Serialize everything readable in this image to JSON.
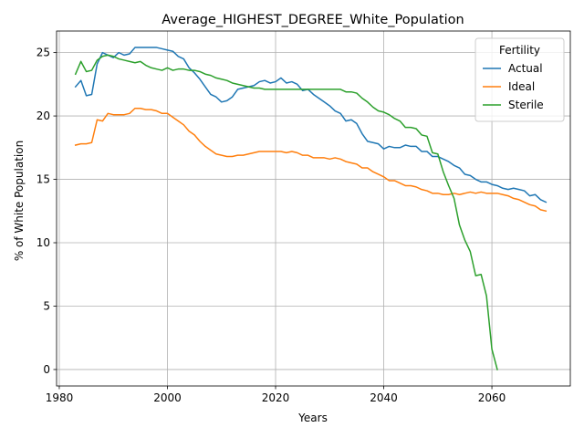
{
  "chart_data": {
    "type": "line",
    "title": "Average_HIGHEST_DEGREE_White_Population",
    "xlabel": "Years",
    "ylabel": "% of White Population",
    "xlim": [
      1979.5,
      2074.5
    ],
    "ylim": [
      -1.3,
      26.7
    ],
    "xticks": [
      1980,
      2000,
      2020,
      2040,
      2060
    ],
    "yticks": [
      0,
      5,
      10,
      15,
      20,
      25
    ],
    "grid": true,
    "legend": {
      "title": "Fertility",
      "position": "top-right"
    },
    "series": [
      {
        "name": "Actual",
        "color": "#1f77b4",
        "points": [
          [
            1983,
            22.3
          ],
          [
            1984,
            22.8
          ],
          [
            1985,
            21.6
          ],
          [
            1986,
            21.7
          ],
          [
            1987,
            24.1
          ],
          [
            1988,
            25.0
          ],
          [
            1989,
            24.8
          ],
          [
            1990,
            24.6
          ],
          [
            1991,
            25.0
          ],
          [
            1992,
            24.8
          ],
          [
            1993,
            24.9
          ],
          [
            1994,
            25.4
          ],
          [
            1995,
            25.4
          ],
          [
            1996,
            25.4
          ],
          [
            1997,
            25.4
          ],
          [
            1998,
            25.4
          ],
          [
            1999,
            25.3
          ],
          [
            2000,
            25.2
          ],
          [
            2001,
            25.1
          ],
          [
            2002,
            24.7
          ],
          [
            2003,
            24.5
          ],
          [
            2004,
            23.8
          ],
          [
            2005,
            23.4
          ],
          [
            2006,
            22.9
          ],
          [
            2007,
            22.3
          ],
          [
            2008,
            21.7
          ],
          [
            2009,
            21.5
          ],
          [
            2010,
            21.1
          ],
          [
            2011,
            21.2
          ],
          [
            2012,
            21.5
          ],
          [
            2013,
            22.1
          ],
          [
            2014,
            22.2
          ],
          [
            2015,
            22.3
          ],
          [
            2016,
            22.4
          ],
          [
            2017,
            22.7
          ],
          [
            2018,
            22.8
          ],
          [
            2019,
            22.6
          ],
          [
            2020,
            22.7
          ],
          [
            2021,
            23.0
          ],
          [
            2022,
            22.6
          ],
          [
            2023,
            22.7
          ],
          [
            2024,
            22.5
          ],
          [
            2025,
            22.0
          ],
          [
            2026,
            22.1
          ],
          [
            2027,
            21.7
          ],
          [
            2028,
            21.4
          ],
          [
            2029,
            21.1
          ],
          [
            2030,
            20.8
          ],
          [
            2031,
            20.4
          ],
          [
            2032,
            20.2
          ],
          [
            2033,
            19.6
          ],
          [
            2034,
            19.7
          ],
          [
            2035,
            19.4
          ],
          [
            2036,
            18.6
          ],
          [
            2037,
            18.0
          ],
          [
            2038,
            17.9
          ],
          [
            2039,
            17.8
          ],
          [
            2040,
            17.4
          ],
          [
            2041,
            17.6
          ],
          [
            2042,
            17.5
          ],
          [
            2043,
            17.5
          ],
          [
            2044,
            17.7
          ],
          [
            2045,
            17.6
          ],
          [
            2046,
            17.6
          ],
          [
            2047,
            17.2
          ],
          [
            2048,
            17.2
          ],
          [
            2049,
            16.8
          ],
          [
            2050,
            16.8
          ],
          [
            2051,
            16.6
          ],
          [
            2052,
            16.4
          ],
          [
            2053,
            16.1
          ],
          [
            2054,
            15.9
          ],
          [
            2055,
            15.4
          ],
          [
            2056,
            15.3
          ],
          [
            2057,
            15.0
          ],
          [
            2058,
            14.8
          ],
          [
            2059,
            14.8
          ],
          [
            2060,
            14.6
          ],
          [
            2061,
            14.5
          ],
          [
            2062,
            14.3
          ],
          [
            2063,
            14.2
          ],
          [
            2064,
            14.3
          ],
          [
            2065,
            14.2
          ],
          [
            2066,
            14.1
          ],
          [
            2067,
            13.7
          ],
          [
            2068,
            13.8
          ],
          [
            2069,
            13.4
          ],
          [
            2070,
            13.2
          ]
        ]
      },
      {
        "name": "Ideal",
        "color": "#ff7f0e",
        "points": [
          [
            1983,
            17.7
          ],
          [
            1984,
            17.8
          ],
          [
            1985,
            17.8
          ],
          [
            1986,
            17.9
          ],
          [
            1987,
            19.7
          ],
          [
            1988,
            19.6
          ],
          [
            1989,
            20.2
          ],
          [
            1990,
            20.1
          ],
          [
            1991,
            20.1
          ],
          [
            1992,
            20.1
          ],
          [
            1993,
            20.2
          ],
          [
            1994,
            20.6
          ],
          [
            1995,
            20.6
          ],
          [
            1996,
            20.5
          ],
          [
            1997,
            20.5
          ],
          [
            1998,
            20.4
          ],
          [
            1999,
            20.2
          ],
          [
            2000,
            20.2
          ],
          [
            2001,
            19.9
          ],
          [
            2002,
            19.6
          ],
          [
            2003,
            19.3
          ],
          [
            2004,
            18.8
          ],
          [
            2005,
            18.5
          ],
          [
            2006,
            18.0
          ],
          [
            2007,
            17.6
          ],
          [
            2008,
            17.3
          ],
          [
            2009,
            17.0
          ],
          [
            2010,
            16.9
          ],
          [
            2011,
            16.8
          ],
          [
            2012,
            16.8
          ],
          [
            2013,
            16.9
          ],
          [
            2014,
            16.9
          ],
          [
            2015,
            17.0
          ],
          [
            2016,
            17.1
          ],
          [
            2017,
            17.2
          ],
          [
            2018,
            17.2
          ],
          [
            2019,
            17.2
          ],
          [
            2020,
            17.2
          ],
          [
            2021,
            17.2
          ],
          [
            2022,
            17.1
          ],
          [
            2023,
            17.2
          ],
          [
            2024,
            17.1
          ],
          [
            2025,
            16.9
          ],
          [
            2026,
            16.9
          ],
          [
            2027,
            16.7
          ],
          [
            2028,
            16.7
          ],
          [
            2029,
            16.7
          ],
          [
            2030,
            16.6
          ],
          [
            2031,
            16.7
          ],
          [
            2032,
            16.6
          ],
          [
            2033,
            16.4
          ],
          [
            2034,
            16.3
          ],
          [
            2035,
            16.2
          ],
          [
            2036,
            15.9
          ],
          [
            2037,
            15.9
          ],
          [
            2038,
            15.6
          ],
          [
            2039,
            15.4
          ],
          [
            2040,
            15.2
          ],
          [
            2041,
            14.9
          ],
          [
            2042,
            14.9
          ],
          [
            2043,
            14.7
          ],
          [
            2044,
            14.5
          ],
          [
            2045,
            14.5
          ],
          [
            2046,
            14.4
          ],
          [
            2047,
            14.2
          ],
          [
            2048,
            14.1
          ],
          [
            2049,
            13.9
          ],
          [
            2050,
            13.9
          ],
          [
            2051,
            13.8
          ],
          [
            2052,
            13.8
          ],
          [
            2053,
            13.9
          ],
          [
            2054,
            13.8
          ],
          [
            2055,
            13.9
          ],
          [
            2056,
            14.0
          ],
          [
            2057,
            13.9
          ],
          [
            2058,
            14.0
          ],
          [
            2059,
            13.9
          ],
          [
            2060,
            13.9
          ],
          [
            2061,
            13.9
          ],
          [
            2062,
            13.8
          ],
          [
            2063,
            13.7
          ],
          [
            2064,
            13.5
          ],
          [
            2065,
            13.4
          ],
          [
            2066,
            13.2
          ],
          [
            2067,
            13.0
          ],
          [
            2068,
            12.9
          ],
          [
            2069,
            12.6
          ],
          [
            2070,
            12.5
          ]
        ]
      },
      {
        "name": "Sterile",
        "color": "#2ca02c",
        "points": [
          [
            1983,
            23.3
          ],
          [
            1984,
            24.3
          ],
          [
            1985,
            23.5
          ],
          [
            1986,
            23.6
          ],
          [
            1987,
            24.4
          ],
          [
            1988,
            24.7
          ],
          [
            1989,
            24.8
          ],
          [
            1990,
            24.7
          ],
          [
            1991,
            24.5
          ],
          [
            1992,
            24.4
          ],
          [
            1993,
            24.3
          ],
          [
            1994,
            24.2
          ],
          [
            1995,
            24.3
          ],
          [
            1996,
            24.0
          ],
          [
            1997,
            23.8
          ],
          [
            1998,
            23.7
          ],
          [
            1999,
            23.6
          ],
          [
            2000,
            23.8
          ],
          [
            2001,
            23.6
          ],
          [
            2002,
            23.7
          ],
          [
            2003,
            23.7
          ],
          [
            2004,
            23.6
          ],
          [
            2005,
            23.6
          ],
          [
            2006,
            23.5
          ],
          [
            2007,
            23.3
          ],
          [
            2008,
            23.2
          ],
          [
            2009,
            23.0
          ],
          [
            2010,
            22.9
          ],
          [
            2011,
            22.8
          ],
          [
            2012,
            22.6
          ],
          [
            2013,
            22.5
          ],
          [
            2014,
            22.4
          ],
          [
            2015,
            22.3
          ],
          [
            2016,
            22.2
          ],
          [
            2017,
            22.2
          ],
          [
            2018,
            22.1
          ],
          [
            2019,
            22.1
          ],
          [
            2020,
            22.1
          ],
          [
            2021,
            22.1
          ],
          [
            2022,
            22.1
          ],
          [
            2023,
            22.1
          ],
          [
            2024,
            22.1
          ],
          [
            2025,
            22.1
          ],
          [
            2026,
            22.1
          ],
          [
            2027,
            22.1
          ],
          [
            2028,
            22.1
          ],
          [
            2029,
            22.1
          ],
          [
            2030,
            22.1
          ],
          [
            2031,
            22.1
          ],
          [
            2032,
            22.1
          ],
          [
            2033,
            21.9
          ],
          [
            2034,
            21.9
          ],
          [
            2035,
            21.8
          ],
          [
            2036,
            21.4
          ],
          [
            2037,
            21.1
          ],
          [
            2038,
            20.7
          ],
          [
            2039,
            20.4
          ],
          [
            2040,
            20.3
          ],
          [
            2041,
            20.1
          ],
          [
            2042,
            19.8
          ],
          [
            2043,
            19.6
          ],
          [
            2044,
            19.1
          ],
          [
            2045,
            19.1
          ],
          [
            2046,
            19.0
          ],
          [
            2047,
            18.5
          ],
          [
            2048,
            18.4
          ],
          [
            2049,
            17.1
          ],
          [
            2050,
            17.0
          ],
          [
            2051,
            15.6
          ],
          [
            2052,
            14.5
          ],
          [
            2053,
            13.5
          ],
          [
            2054,
            11.4
          ],
          [
            2055,
            10.2
          ],
          [
            2056,
            9.3
          ],
          [
            2057,
            7.4
          ],
          [
            2058,
            7.5
          ],
          [
            2059,
            5.8
          ],
          [
            2060,
            1.6
          ],
          [
            2061,
            0.0
          ]
        ]
      }
    ]
  }
}
